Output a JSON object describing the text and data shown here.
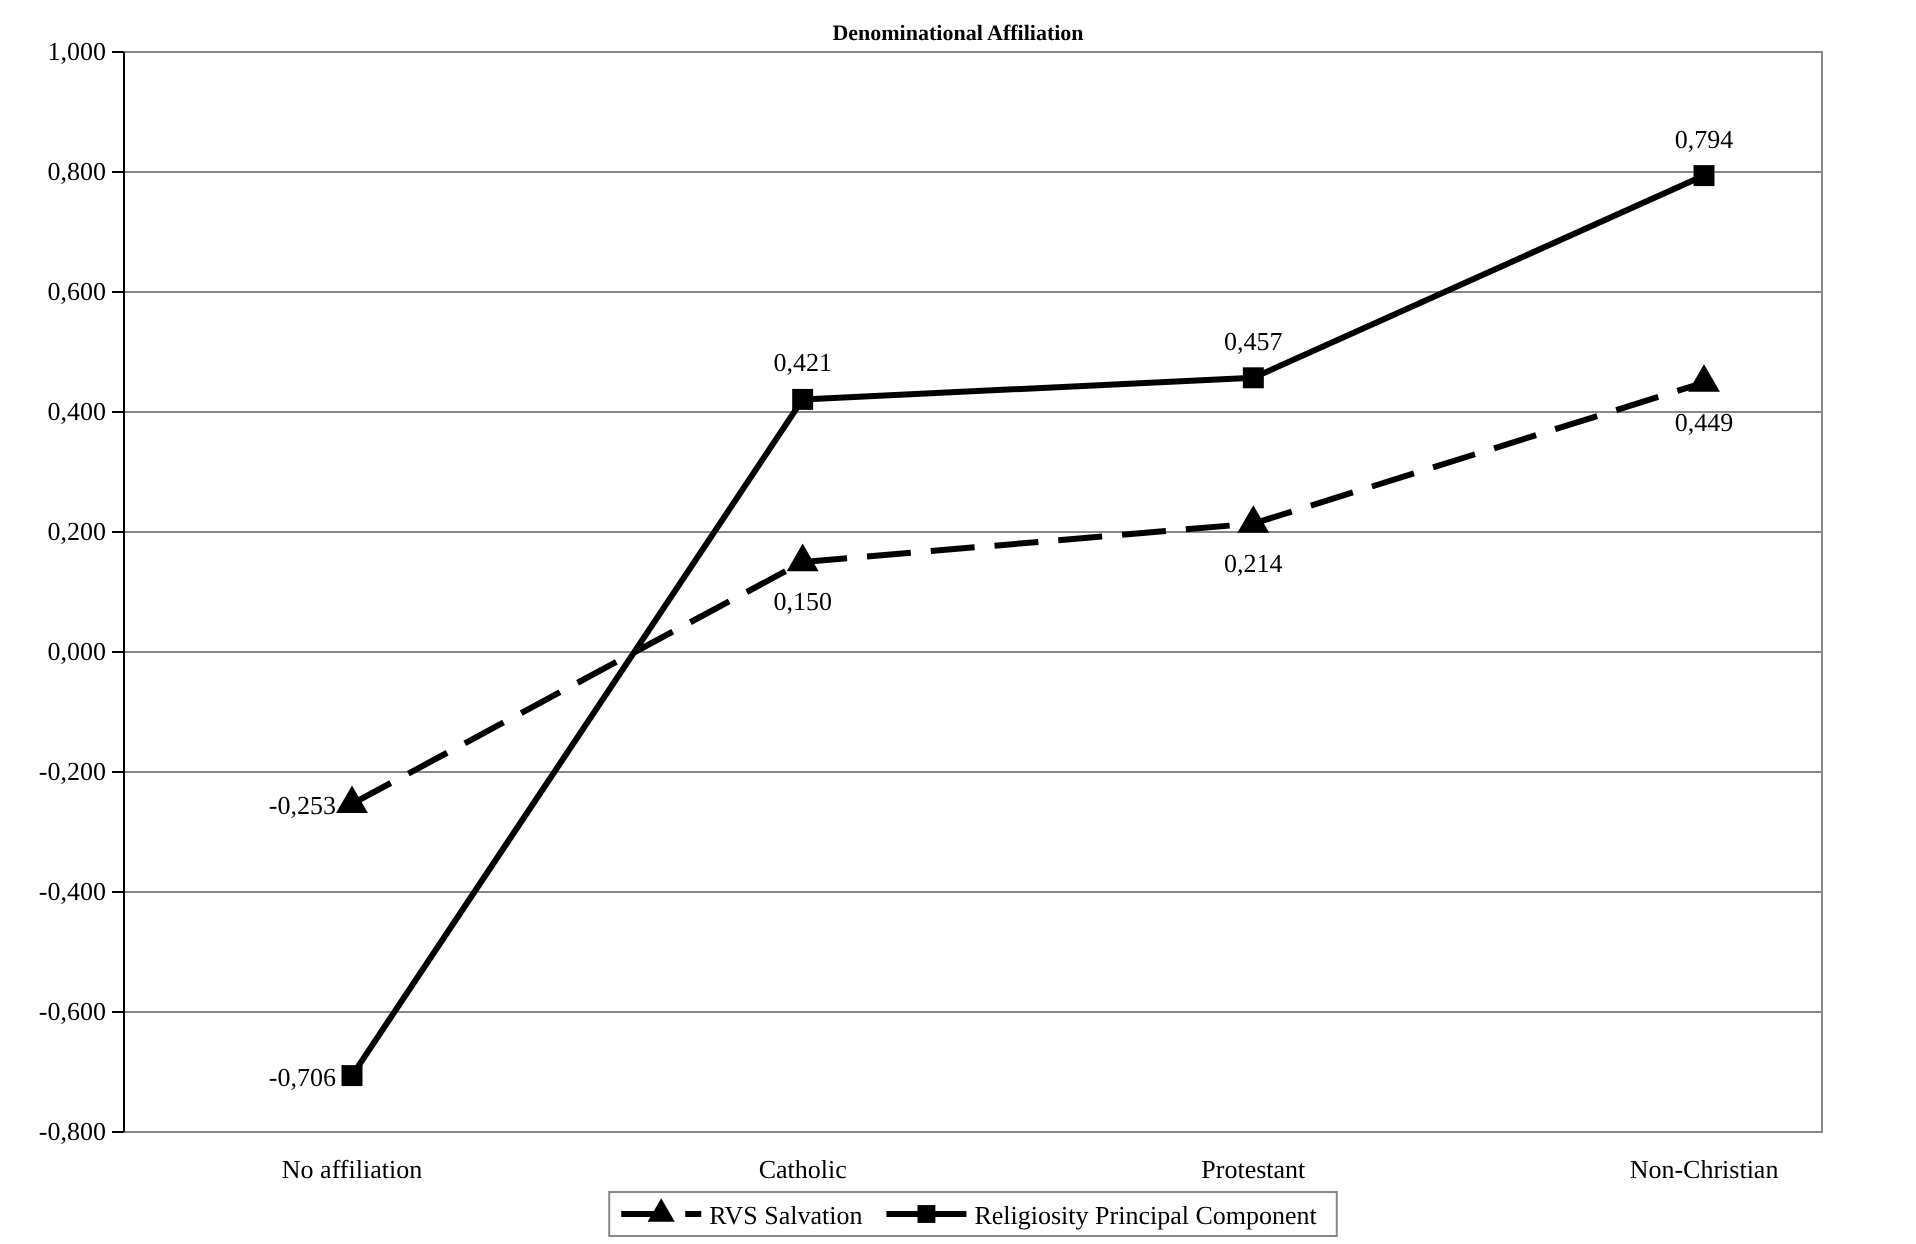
{
  "chart_data": {
    "type": "line",
    "title": "Denominational Affiliation",
    "categories": [
      "No affiliation",
      "Catholic",
      "Protestant",
      "Non-Christian"
    ],
    "series": [
      {
        "name": "RVS Salvation",
        "color": "#000000",
        "values": [
          -0.253,
          0.15,
          0.214,
          0.449
        ],
        "value_labels": [
          "-0,253",
          "0,150",
          "0,214",
          "0,449"
        ],
        "marker": "triangle",
        "line_style": "dashed"
      },
      {
        "name": "Religiosity Principal Component",
        "color": "#000000",
        "values": [
          -0.706,
          0.421,
          0.457,
          0.794
        ],
        "value_labels": [
          "-0,706",
          "0,421",
          "0,457",
          "0,794"
        ],
        "marker": "square",
        "line_style": "solid"
      }
    ],
    "ylim": [
      -0.8,
      1.0
    ],
    "yticks": [
      {
        "value": -0.8,
        "label": "-0,800"
      },
      {
        "value": -0.6,
        "label": "-0,600"
      },
      {
        "value": -0.4,
        "label": "-0,400"
      },
      {
        "value": -0.2,
        "label": "-0,200"
      },
      {
        "value": 0,
        "label": "0,000"
      },
      {
        "value": 0.2,
        "label": "0,200"
      },
      {
        "value": 0.4,
        "label": "0,400"
      },
      {
        "value": 0.6,
        "label": "0,600"
      },
      {
        "value": 0.8,
        "label": "0,800"
      },
      {
        "value": 1.0,
        "label": "1,000"
      }
    ],
    "grid": "y",
    "legend": "bottom"
  }
}
